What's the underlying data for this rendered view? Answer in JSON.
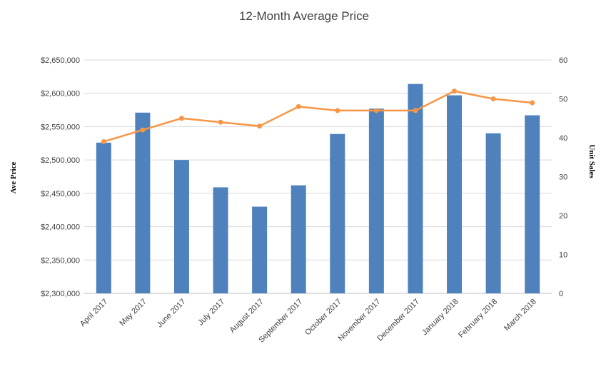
{
  "chart_data": {
    "type": "bar",
    "title": "12-Month Average Price",
    "xlabel": "",
    "ylabel": "Ave Price",
    "y2label": "Unit Sales",
    "categories": [
      "April 2017",
      "May 2017",
      "June 2017",
      "July 2017",
      "August 2017",
      "September 2017",
      "October 2017",
      "November 2017",
      "December 2017",
      "January 2018",
      "February 2018",
      "March 2018"
    ],
    "ylim": [
      2300000,
      2650000
    ],
    "y_ticks": [
      "$2,300,000",
      "$2,350,000",
      "$2,400,000",
      "$2,450,000",
      "$2,500,000",
      "$2,550,000",
      "$2,600,000",
      "$2,650,000"
    ],
    "y2lim": [
      0,
      60
    ],
    "y2_ticks": [
      "0",
      "10",
      "20",
      "30",
      "40",
      "50",
      "60"
    ],
    "grid": true,
    "legend": "none",
    "series": [
      {
        "type": "bar",
        "axis": "left",
        "color": "#4F81BD",
        "values": [
          2526000,
          2571000,
          2500000,
          2459000,
          2430000,
          2462000,
          2539000,
          2577000,
          2614000,
          2597000,
          2540000,
          2567000
        ]
      },
      {
        "type": "line",
        "axis": "right",
        "color": "#F79646",
        "values": [
          39,
          42,
          45,
          44,
          43,
          48,
          47,
          47,
          47,
          52,
          50,
          49
        ]
      }
    ]
  }
}
